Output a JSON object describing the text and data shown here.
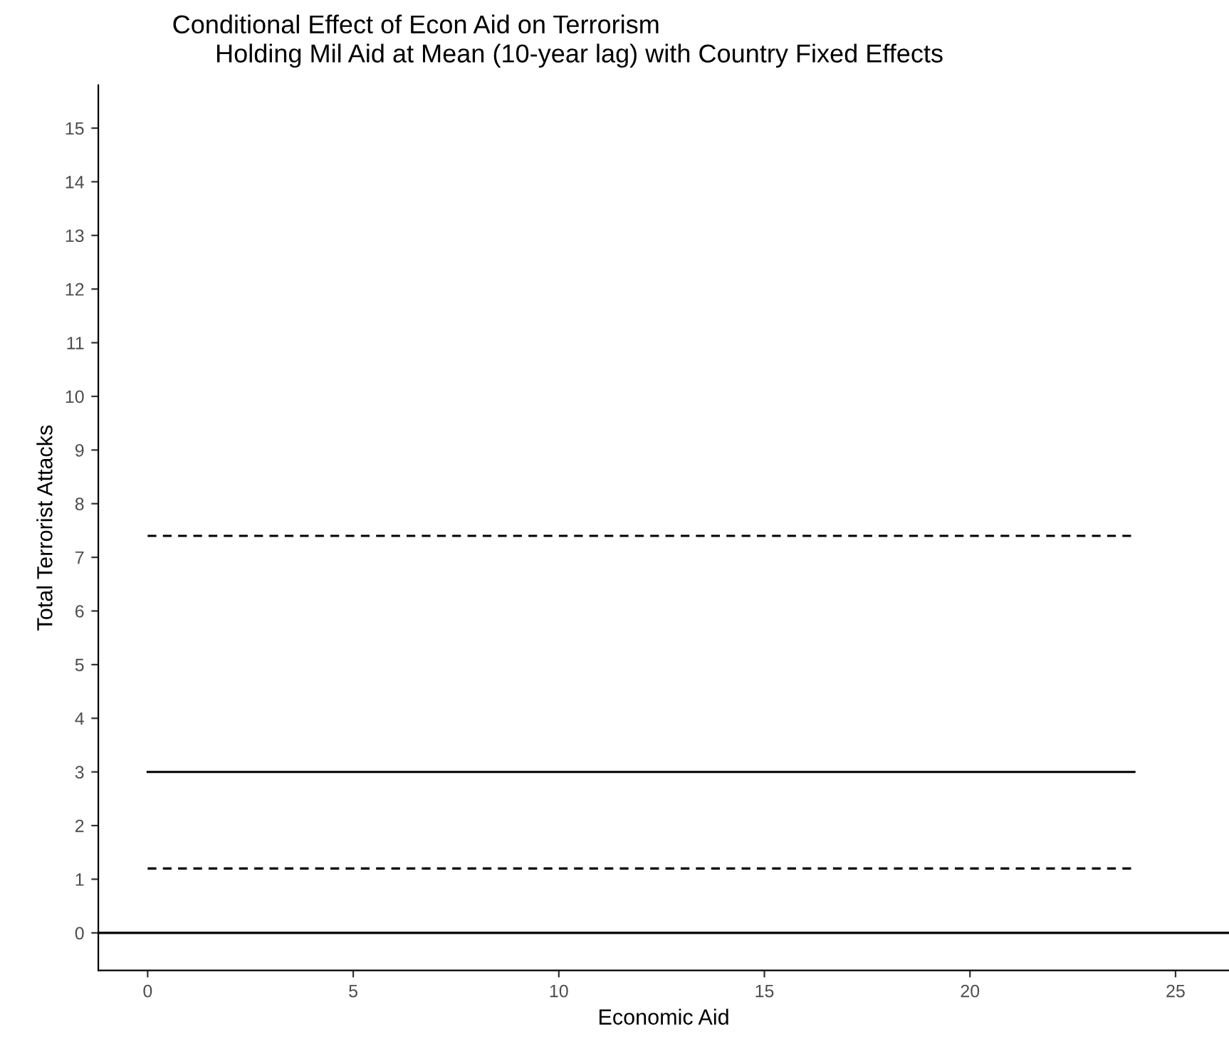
{
  "chart_data": {
    "type": "line",
    "title": "Conditional Effect of Econ Aid on Terrorism",
    "subtitle": "Holding Mil Aid at Mean (10-year lag) with Country Fixed Effects",
    "xlabel": "Economic Aid",
    "ylabel": "Total Terrorist Attacks",
    "x": [
      0,
      24
    ],
    "series": [
      {
        "color": "#000000",
        "values": [
          7.4,
          7.4
        ],
        "line_style": "dashed"
      },
      {
        "color": "#000000",
        "values": [
          3.0,
          3.0
        ],
        "line_style": "solid"
      },
      {
        "color": "#000000",
        "values": [
          1.2,
          1.2
        ],
        "line_style": "dashed"
      }
    ],
    "ref_lines": [
      {
        "axis": "y",
        "value": 0,
        "color": "#000000",
        "line_style": "solid"
      }
    ],
    "xlim": [
      -1.2,
      26.3
    ],
    "ylim": [
      -0.7,
      15.8
    ],
    "xticks": [
      0,
      5,
      10,
      15,
      20,
      25
    ],
    "yticks": [
      0,
      1,
      2,
      3,
      4,
      5,
      6,
      7,
      8,
      9,
      10,
      11,
      12,
      13,
      14,
      15
    ],
    "grid": false,
    "legend": false
  }
}
